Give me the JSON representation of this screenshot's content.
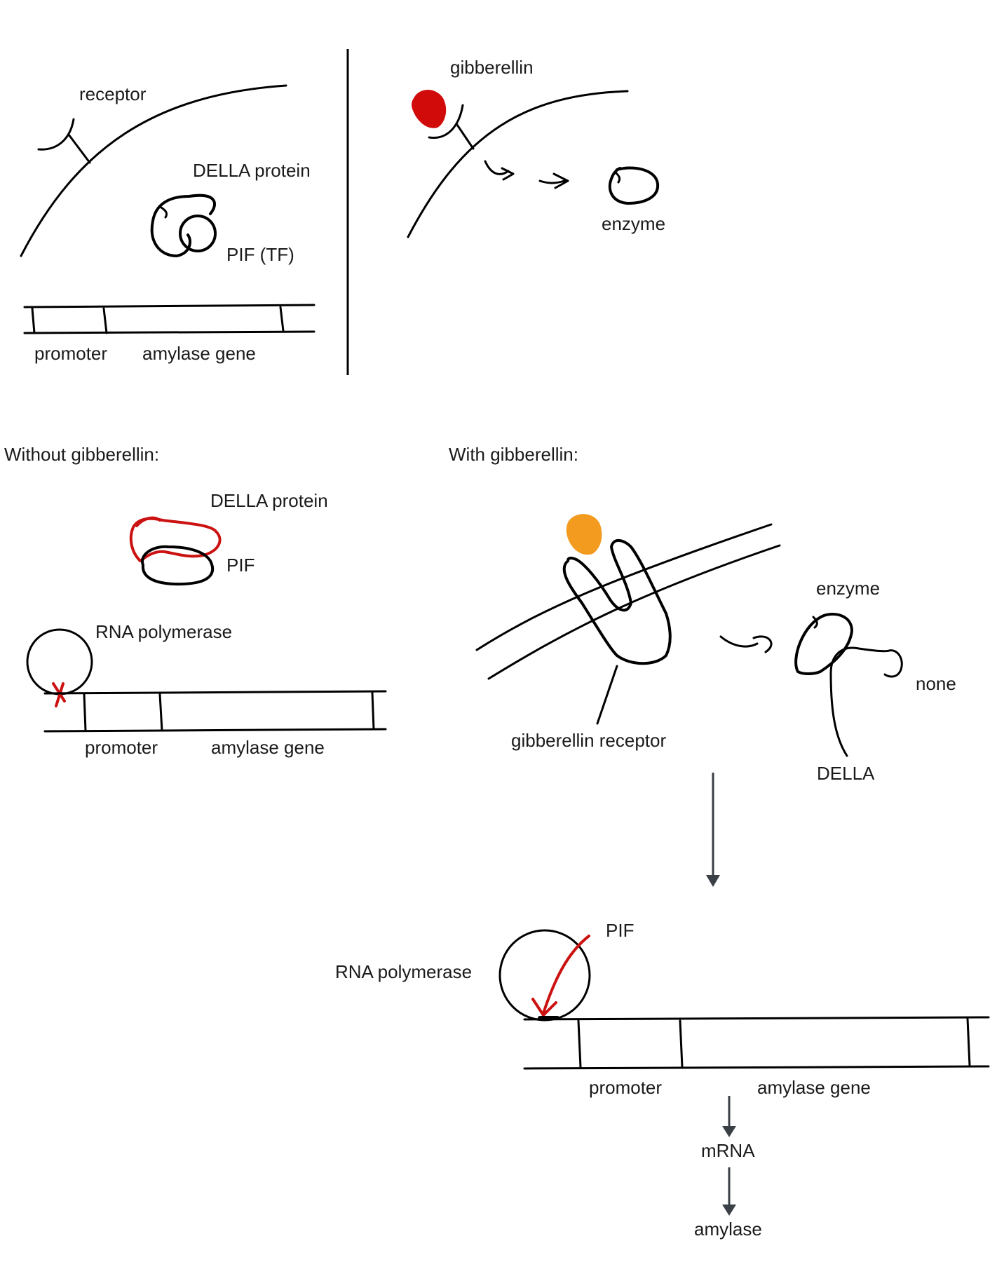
{
  "colors": {
    "ink": "#000000",
    "della_red": "#cc1111",
    "gibberellin_red": "#d10a0a",
    "gibberellin_orange": "#f39b1f",
    "arrow_gray": "#3b3f46"
  },
  "top_left": {
    "receptor": "receptor",
    "della_protein": "DELLA protein",
    "pif_tf": "PIF (TF)",
    "promoter": "promoter",
    "amylase_gene": "amylase gene"
  },
  "top_right": {
    "gibberellin": "gibberellin",
    "enzyme": "enzyme"
  },
  "without": {
    "title": "Without gibberellin:",
    "della_protein": "DELLA protein",
    "pif": "PIF",
    "rna_polymerase": "RNA polymerase",
    "promoter": "promoter",
    "amylase_gene": "amylase gene"
  },
  "with": {
    "title": "With gibberellin:",
    "enzyme": "enzyme",
    "none": "none",
    "gibberellin_receptor": "gibberellin receptor",
    "della": "DELLA",
    "pif": "PIF",
    "rna_polymerase": "RNA polymerase",
    "promoter": "promoter",
    "amylase_gene": "amylase gene",
    "mrna": "mRNA",
    "amylase": "amylase"
  }
}
